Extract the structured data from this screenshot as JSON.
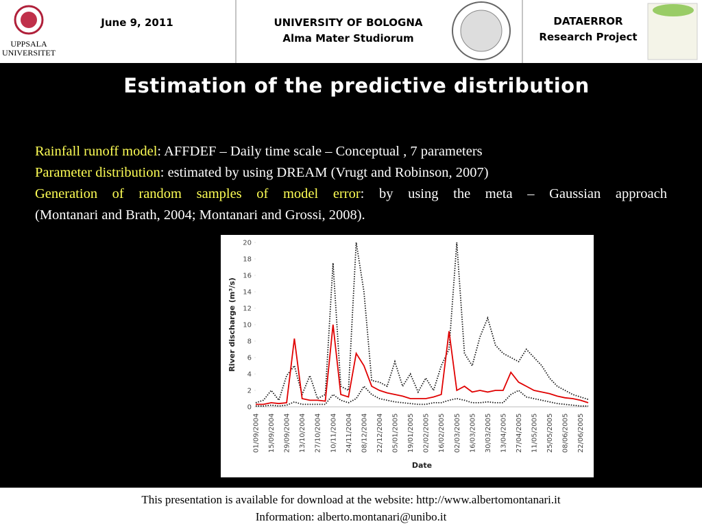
{
  "header": {
    "date": "June 9, 2011",
    "left_logo": [
      "UPPSALA",
      "UNIVERSITET"
    ],
    "center": [
      "UNIVERSITY OF BOLOGNA",
      "Alma Mater Studiorum"
    ],
    "right": [
      "DATAERROR",
      "Research Project"
    ]
  },
  "title": "Estimation of the predictive distribution",
  "body": {
    "lines": [
      {
        "label": "Rainfall runoff model",
        "text": ": AFFDEF – Daily time scale – Conceptual , 7 parameters"
      },
      {
        "label": "Parameter distribution",
        "text": ": estimated by using DREAM (Vrugt and Robinson, 2007)"
      },
      {
        "label": "Generation of random samples of model error",
        "text": ": by using the meta – Gaussian approach"
      }
    ],
    "continuation": "(Montanari and Brath, 2004; Montanari and Grossi, 2008)."
  },
  "chart_data": {
    "type": "line",
    "xlabel": "Date",
    "ylabel": "River discharge (m³/s)",
    "categories": [
      "01/09/2004",
      null,
      "15/09/2004",
      null,
      "29/09/2004",
      null,
      "13/10/2004",
      null,
      "27/10/2004",
      null,
      "10/11/2004",
      null,
      "24/11/2004",
      null,
      "08/12/2004",
      null,
      "22/12/2004",
      null,
      "05/01/2005",
      null,
      "19/01/2005",
      null,
      "02/02/2005",
      null,
      "16/02/2005",
      null,
      "02/03/2005",
      null,
      "16/03/2005",
      null,
      "30/03/2005",
      null,
      "13/04/2005",
      null,
      "27/04/2005",
      null,
      "11/05/2005",
      null,
      "25/05/2005",
      null,
      "08/06/2005",
      null,
      "22/06/2005",
      null
    ],
    "series": [
      {
        "color": "#e00000",
        "dash": "solid",
        "values": [
          0.3,
          0.3,
          0.5,
          0.4,
          0.5,
          8.3,
          1.0,
          0.8,
          0.8,
          0.7,
          10.0,
          1.5,
          1.2,
          6.5,
          5.0,
          2.5,
          2.0,
          1.7,
          1.5,
          1.3,
          1.0,
          1.0,
          1.0,
          1.2,
          1.5,
          9.2,
          2.0,
          2.5,
          1.8,
          2.0,
          1.8,
          2.0,
          2.0,
          4.2,
          3.0,
          2.5,
          2.0,
          1.8,
          1.6,
          1.3,
          1.1,
          1.0,
          0.8,
          0.5
        ]
      },
      {
        "color": "#111111",
        "dash": "dotted",
        "values": [
          0.5,
          0.8,
          2.0,
          0.8,
          3.8,
          5.0,
          1.5,
          3.8,
          1.0,
          1.5,
          17.5,
          2.5,
          2.0,
          20,
          14,
          3.2,
          3.0,
          2.5,
          5.5,
          2.5,
          4.0,
          1.8,
          3.5,
          2.0,
          5.0,
          7.0,
          20,
          6.5,
          5.0,
          8.5,
          10.8,
          7.5,
          6.5,
          6.0,
          5.5,
          7.0,
          6.0,
          5.0,
          3.5,
          2.5,
          2.0,
          1.5,
          1.2,
          0.9
        ]
      },
      {
        "color": "#111111",
        "dash": "dotted",
        "values": [
          0.1,
          0.1,
          0.2,
          0.1,
          0.2,
          0.6,
          0.3,
          0.3,
          0.3,
          0.3,
          1.5,
          0.8,
          0.5,
          1.0,
          2.5,
          1.5,
          1.0,
          0.8,
          0.6,
          0.5,
          0.4,
          0.3,
          0.3,
          0.5,
          0.5,
          0.8,
          1.0,
          0.8,
          0.5,
          0.5,
          0.6,
          0.5,
          0.5,
          1.5,
          2.0,
          1.2,
          1.0,
          0.8,
          0.6,
          0.4,
          0.3,
          0.2,
          0.1,
          0.1
        ]
      }
    ],
    "ylim": [
      0,
      20
    ],
    "yticks": [
      0,
      2,
      4,
      6,
      8,
      10,
      12,
      14,
      16,
      18,
      20
    ],
    "grid": false
  },
  "footer": [
    "This presentation is available for download at the website: http://www.albertomontanari.it",
    "Information: alberto.montanari@unibo.it"
  ]
}
